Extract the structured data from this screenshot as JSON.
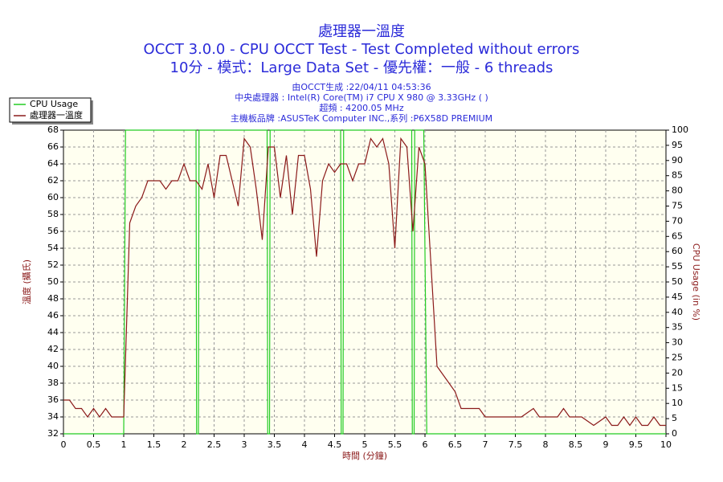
{
  "chart_data": {
    "type": "line",
    "title": "處理器一溫度",
    "subtitle": "OCCT 3.0.0 - CPU OCCT Test - Test Completed without errors",
    "subtitle2": "10分 - 模式：Large Data Set - 優先權：一般 - 6 threads",
    "info": [
      "由OCCT生成 :22/04/11 04:53:36",
      "中央處理器 : Intel(R) Core(TM) i7 CPU X 980 @ 3.33GHz (   )",
      "超頻 : 4200.05 MHz",
      "主機板品牌 :ASUSTeK Computer INC.,系列 :P6X58D PREMIUM"
    ],
    "xlabel": "時間 (分鐘)",
    "ylabel": "溫度 (攝氏)",
    "y2label": "CPU Usage (in %)",
    "xlim": [
      0,
      10
    ],
    "xticks": [
      0,
      0.5,
      1,
      1.5,
      2,
      2.5,
      3,
      3.5,
      4,
      4.5,
      5,
      5.5,
      6,
      6.5,
      7,
      7.5,
      8,
      8.5,
      9,
      9.5,
      10
    ],
    "ylim": [
      32,
      68
    ],
    "yticks": [
      32,
      34,
      36,
      38,
      40,
      42,
      44,
      46,
      48,
      50,
      52,
      54,
      56,
      58,
      60,
      62,
      64,
      66,
      68
    ],
    "y2lim": [
      0,
      100
    ],
    "y2ticks": [
      0,
      5,
      10,
      15,
      20,
      25,
      30,
      35,
      40,
      45,
      50,
      55,
      60,
      65,
      70,
      75,
      80,
      85,
      90,
      95,
      100
    ],
    "grid": true,
    "legend": "top-left",
    "series": [
      {
        "name": "CPU Usage",
        "color": "#22cc22",
        "axis": "y2",
        "x": [
          0,
          1.0,
          1.03,
          2.2,
          2.21,
          2.24,
          2.25,
          3.38,
          3.39,
          3.42,
          3.43,
          4.6,
          4.61,
          4.64,
          4.65,
          5.78,
          5.79,
          5.82,
          5.83,
          5.98,
          6.03,
          10
        ],
        "values": [
          0,
          0,
          100,
          100,
          0,
          0,
          100,
          100,
          0,
          0,
          100,
          100,
          0,
          0,
          100,
          100,
          0,
          0,
          100,
          100,
          0,
          0
        ]
      },
      {
        "name": "處理器一溫度",
        "color": "#8b1a1a",
        "x": [
          0,
          0.1,
          0.2,
          0.3,
          0.4,
          0.5,
          0.6,
          0.7,
          0.8,
          0.9,
          1.0,
          1.1,
          1.2,
          1.3,
          1.4,
          1.5,
          1.6,
          1.7,
          1.8,
          1.9,
          2.0,
          2.1,
          2.2,
          2.3,
          2.4,
          2.5,
          2.6,
          2.7,
          2.8,
          2.9,
          3.0,
          3.1,
          3.2,
          3.3,
          3.4,
          3.5,
          3.6,
          3.7,
          3.8,
          3.9,
          4.0,
          4.1,
          4.2,
          4.3,
          4.4,
          4.5,
          4.6,
          4.7,
          4.8,
          4.9,
          5.0,
          5.1,
          5.2,
          5.3,
          5.4,
          5.5,
          5.6,
          5.7,
          5.8,
          5.9,
          6.0,
          6.1,
          6.2,
          6.3,
          6.4,
          6.5,
          6.6,
          6.7,
          6.8,
          6.9,
          7.0,
          7.2,
          7.4,
          7.6,
          7.8,
          7.9,
          8.0,
          8.2,
          8.3,
          8.4,
          8.6,
          8.8,
          9.0,
          9.1,
          9.2,
          9.3,
          9.4,
          9.5,
          9.6,
          9.7,
          9.8,
          9.9,
          10.0
        ],
        "values": [
          36,
          36,
          35,
          35,
          34,
          35,
          34,
          35,
          34,
          34,
          34,
          57,
          59,
          60,
          62,
          62,
          62,
          61,
          62,
          62,
          64,
          62,
          62,
          61,
          64,
          60,
          65,
          65,
          62,
          59,
          67,
          66,
          61,
          55,
          66,
          66,
          60,
          65,
          58,
          65,
          65,
          61,
          53,
          62,
          64,
          63,
          64,
          64,
          62,
          64,
          64,
          67,
          66,
          67,
          64,
          54,
          67,
          66,
          56,
          66,
          64,
          52,
          40,
          39,
          38,
          37,
          35,
          35,
          35,
          35,
          34,
          34,
          34,
          34,
          35,
          34,
          34,
          34,
          35,
          34,
          34,
          33,
          34,
          33,
          33,
          34,
          33,
          34,
          33,
          33,
          34,
          33,
          33
        ]
      }
    ]
  }
}
